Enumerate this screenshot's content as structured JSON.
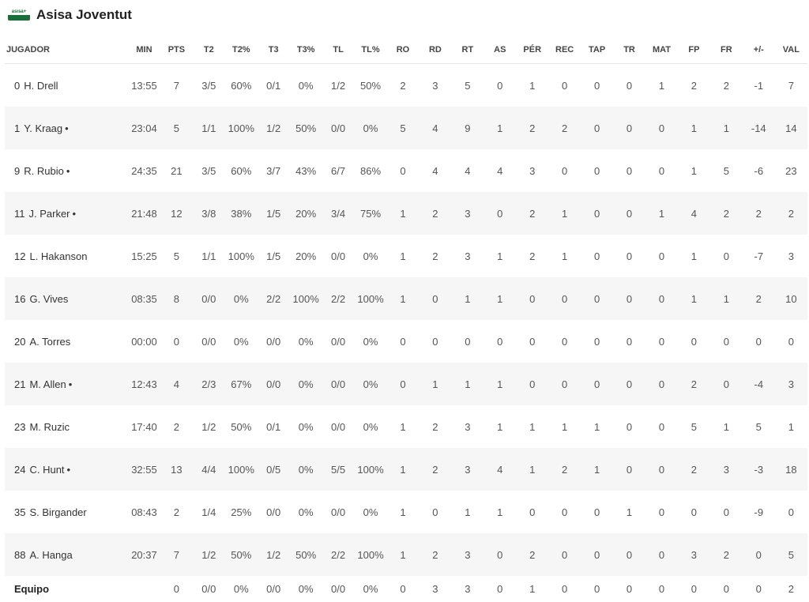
{
  "team": {
    "name": "Asisa Joventut",
    "logo_text": "asisa+"
  },
  "columns": [
    "JUGADOR",
    "MIN",
    "PTS",
    "T2",
    "T2%",
    "T3",
    "T3%",
    "TL",
    "TL%",
    "RO",
    "RD",
    "RT",
    "AS",
    "PÉR",
    "REC",
    "TAP",
    "TR",
    "MAT",
    "FP",
    "FR",
    "+/-",
    "VAL"
  ],
  "players": [
    {
      "num": "0",
      "name": "H. Drell",
      "starter": false,
      "stats": [
        "13:55",
        "7",
        "3/5",
        "60%",
        "0/1",
        "0%",
        "1/2",
        "50%",
        "2",
        "3",
        "5",
        "0",
        "1",
        "0",
        "0",
        "0",
        "1",
        "2",
        "2",
        "-1",
        "7"
      ]
    },
    {
      "num": "1",
      "name": "Y. Kraag",
      "starter": true,
      "stats": [
        "23:04",
        "5",
        "1/1",
        "100%",
        "1/2",
        "50%",
        "0/0",
        "0%",
        "5",
        "4",
        "9",
        "1",
        "2",
        "2",
        "0",
        "0",
        "0",
        "1",
        "1",
        "-14",
        "14"
      ]
    },
    {
      "num": "9",
      "name": "R. Rubio",
      "starter": true,
      "stats": [
        "24:35",
        "21",
        "3/5",
        "60%",
        "3/7",
        "43%",
        "6/7",
        "86%",
        "0",
        "4",
        "4",
        "4",
        "3",
        "0",
        "0",
        "0",
        "0",
        "1",
        "5",
        "-6",
        "23"
      ]
    },
    {
      "num": "11",
      "name": "J. Parker",
      "starter": true,
      "stats": [
        "21:48",
        "12",
        "3/8",
        "38%",
        "1/5",
        "20%",
        "3/4",
        "75%",
        "1",
        "2",
        "3",
        "0",
        "2",
        "1",
        "0",
        "0",
        "1",
        "4",
        "2",
        "2",
        "2"
      ]
    },
    {
      "num": "12",
      "name": "L. Hakanson",
      "starter": false,
      "stats": [
        "15:25",
        "5",
        "1/1",
        "100%",
        "1/5",
        "20%",
        "0/0",
        "0%",
        "1",
        "2",
        "3",
        "1",
        "2",
        "1",
        "0",
        "0",
        "0",
        "1",
        "0",
        "-7",
        "3"
      ]
    },
    {
      "num": "16",
      "name": "G. Vives",
      "starter": false,
      "stats": [
        "08:35",
        "8",
        "0/0",
        "0%",
        "2/2",
        "100%",
        "2/2",
        "100%",
        "1",
        "0",
        "1",
        "1",
        "0",
        "0",
        "0",
        "0",
        "0",
        "1",
        "1",
        "2",
        "10"
      ]
    },
    {
      "num": "20",
      "name": "A. Torres",
      "starter": false,
      "stats": [
        "00:00",
        "0",
        "0/0",
        "0%",
        "0/0",
        "0%",
        "0/0",
        "0%",
        "0",
        "0",
        "0",
        "0",
        "0",
        "0",
        "0",
        "0",
        "0",
        "0",
        "0",
        "0",
        "0"
      ]
    },
    {
      "num": "21",
      "name": "M. Allen",
      "starter": true,
      "stats": [
        "12:43",
        "4",
        "2/3",
        "67%",
        "0/0",
        "0%",
        "0/0",
        "0%",
        "0",
        "1",
        "1",
        "1",
        "0",
        "0",
        "0",
        "0",
        "0",
        "2",
        "0",
        "-4",
        "3"
      ]
    },
    {
      "num": "23",
      "name": "M. Ruzic",
      "starter": false,
      "stats": [
        "17:40",
        "2",
        "1/2",
        "50%",
        "0/1",
        "0%",
        "0/0",
        "0%",
        "1",
        "2",
        "3",
        "1",
        "1",
        "1",
        "1",
        "0",
        "0",
        "5",
        "1",
        "5",
        "1"
      ]
    },
    {
      "num": "24",
      "name": "C. Hunt",
      "starter": true,
      "stats": [
        "32:55",
        "13",
        "4/4",
        "100%",
        "0/5",
        "0%",
        "5/5",
        "100%",
        "1",
        "2",
        "3",
        "4",
        "1",
        "2",
        "1",
        "0",
        "0",
        "2",
        "3",
        "-3",
        "18"
      ]
    },
    {
      "num": "35",
      "name": "S. Birgander",
      "starter": false,
      "stats": [
        "08:43",
        "2",
        "1/4",
        "25%",
        "0/0",
        "0%",
        "0/0",
        "0%",
        "1",
        "0",
        "1",
        "1",
        "0",
        "0",
        "0",
        "1",
        "0",
        "0",
        "0",
        "-9",
        "0"
      ]
    },
    {
      "num": "88",
      "name": "A. Hanga",
      "starter": false,
      "stats": [
        "20:37",
        "7",
        "1/2",
        "50%",
        "1/2",
        "50%",
        "2/2",
        "100%",
        "1",
        "2",
        "3",
        "0",
        "2",
        "0",
        "0",
        "0",
        "0",
        "3",
        "2",
        "0",
        "5"
      ]
    }
  ],
  "team_row": {
    "label": "Equipo",
    "stats": [
      "",
      "0",
      "0/0",
      "0%",
      "0/0",
      "0%",
      "0/0",
      "0%",
      "0",
      "3",
      "3",
      "0",
      "1",
      "0",
      "0",
      "0",
      "0",
      "0",
      "0",
      "0",
      "2"
    ]
  },
  "starter_marker": "•"
}
